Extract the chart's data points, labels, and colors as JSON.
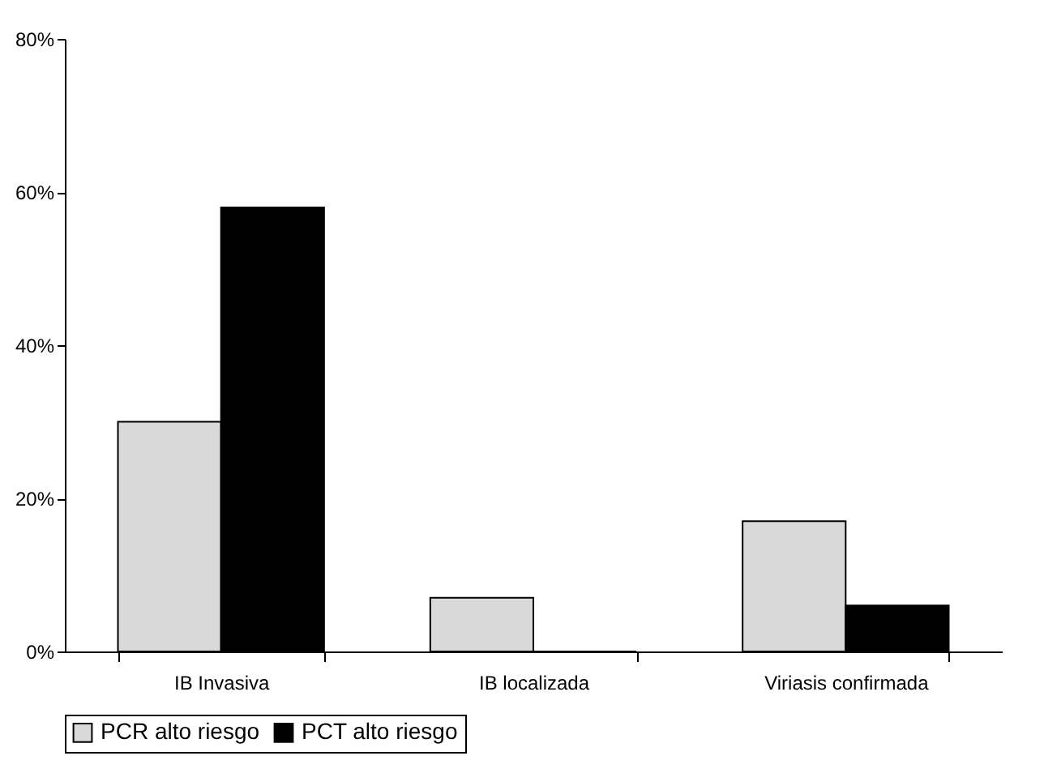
{
  "chart_data": {
    "type": "bar",
    "categories": [
      "IB Invasiva",
      "IB localizada",
      "Viriasis confirmada"
    ],
    "series": [
      {
        "name": "PCR alto riesgo",
        "color": "#d9d9d9",
        "values": [
          30,
          7,
          17
        ]
      },
      {
        "name": "PCT alto riesgo",
        "color": "#000000",
        "values": [
          58,
          0,
          6
        ]
      }
    ],
    "ylim": [
      0,
      80
    ],
    "yticks": [
      {
        "value": 0,
        "label": "0%"
      },
      {
        "value": 20,
        "label": "20%"
      },
      {
        "value": 40,
        "label": "40%"
      },
      {
        "value": 60,
        "label": "60%"
      },
      {
        "value": 80,
        "label": "80%"
      }
    ],
    "grid": false,
    "legend": "bottom"
  }
}
